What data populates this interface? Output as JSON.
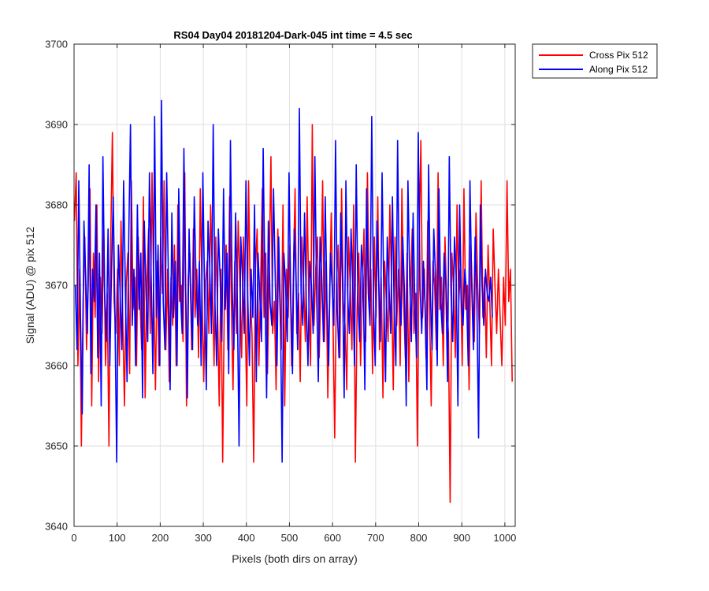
{
  "chart_data": {
    "type": "line",
    "title": "RS04 Day04 20181204-Dark-045 int time = 4.5 sec",
    "xlabel": "Pixels (both dirs on array)",
    "ylabel": "Signal (ADU) @ pix 512",
    "xlim": [
      0,
      1024
    ],
    "ylim": [
      3640,
      3700
    ],
    "xticks": [
      0,
      100,
      200,
      300,
      400,
      500,
      600,
      700,
      800,
      900,
      1000
    ],
    "yticks": [
      3640,
      3650,
      3660,
      3670,
      3680,
      3690,
      3700
    ],
    "grid": true,
    "legend_location": "outside-top-right",
    "series": [
      {
        "name": "Cross Pix 512",
        "color": "#ff0000",
        "x_start": 1,
        "x_step": 4,
        "values": [
          3678,
          3684,
          3660,
          3672,
          3650,
          3668,
          3676,
          3662,
          3670,
          3682,
          3655,
          3674,
          3666,
          3680,
          3658,
          3671,
          3664,
          3677,
          3660,
          3669,
          3650,
          3675,
          3689,
          3668,
          3664,
          3672,
          3660,
          3678,
          3666,
          3655,
          3670,
          3674,
          3659,
          3683,
          3667,
          3671,
          3660,
          3676,
          3668,
          3662,
          3681,
          3656,
          3670,
          3677,
          3664,
          3684,
          3669,
          3657,
          3673,
          3660,
          3676,
          3669,
          3683,
          3662,
          3672,
          3658,
          3671,
          3665,
          3675,
          3660,
          3680,
          3668,
          3670,
          3663,
          3684,
          3655,
          3671,
          3674,
          3662,
          3677,
          3666,
          3672,
          3661,
          3682,
          3669,
          3658,
          3670,
          3673,
          3664,
          3680,
          3671,
          3660,
          3676,
          3667,
          3655,
          3672,
          3648,
          3669,
          3675,
          3662,
          3681,
          3668,
          3657,
          3673,
          3664,
          3678,
          3670,
          3661,
          3676,
          3667,
          3655,
          3683,
          3669,
          3664,
          3648,
          3672,
          3677,
          3660,
          3670,
          3682,
          3666,
          3674,
          3659,
          3672,
          3686,
          3664,
          3668,
          3657,
          3677,
          3669,
          3662,
          3680,
          3655,
          3672,
          3666,
          3675,
          3660,
          3671,
          3682,
          3664,
          3669,
          3658,
          3676,
          3670,
          3663,
          3681,
          3668,
          3660,
          3690,
          3665,
          3672,
          3676,
          3661,
          3670,
          3683,
          3663,
          3673,
          3656,
          3668,
          3679,
          3666,
          3651,
          3670,
          3675,
          3661,
          3682,
          3668,
          3665,
          3657,
          3676,
          3670,
          3662,
          3680,
          3648,
          3667,
          3674,
          3660,
          3669,
          3677,
          3663,
          3684,
          3668,
          3672,
          3659,
          3676,
          3666,
          3681,
          3662,
          3671,
          3656,
          3673,
          3668,
          3663,
          3680,
          3670,
          3657,
          3676,
          3665,
          3672,
          3660,
          3682,
          3668,
          3661,
          3674,
          3658,
          3670,
          3677,
          3664,
          3669,
          3650,
          3675,
          3688,
          3666,
          3672,
          3661,
          3678,
          3668,
          3655,
          3673,
          3670,
          3662,
          3684,
          3667,
          3671,
          3660,
          3676,
          3668,
          3664,
          3643,
          3674,
          3670,
          3661,
          3680,
          3668,
          3672,
          3660,
          3682,
          3667,
          3670,
          3657,
          3675,
          3668,
          3663,
          3679,
          3670,
          3664,
          3683,
          3666,
          3671,
          3661,
          3675,
          3668,
          3660,
          3677,
          3670,
          3664,
          3672,
          3666,
          3660,
          3671,
          3665,
          3683,
          3668,
          3672,
          3658
        ]
      },
      {
        "name": "Along Pix 512",
        "color": "#0000ff",
        "x_start": 3,
        "x_step": 4,
        "values": [
          3670,
          3662,
          3683,
          3666,
          3654,
          3678,
          3671,
          3664,
          3685,
          3659,
          3672,
          3668,
          3680,
          3661,
          3674,
          3655,
          3686,
          3669,
          3663,
          3677,
          3660,
          3672,
          3681,
          3666,
          3648,
          3675,
          3669,
          3662,
          3683,
          3670,
          3658,
          3676,
          3690,
          3665,
          3672,
          3660,
          3680,
          3667,
          3674,
          3656,
          3678,
          3669,
          3663,
          3684,
          3671,
          3659,
          3691,
          3666,
          3675,
          3660,
          3693,
          3668,
          3662,
          3684,
          3671,
          3657,
          3679,
          3666,
          3673,
          3660,
          3682,
          3669,
          3664,
          3687,
          3670,
          3656,
          3677,
          3668,
          3662,
          3681,
          3671,
          3665,
          3673,
          3660,
          3684,
          3669,
          3657,
          3678,
          3672,
          3664,
          3690,
          3668,
          3660,
          3677,
          3671,
          3663,
          3682,
          3667,
          3674,
          3659,
          3688,
          3670,
          3662,
          3679,
          3668,
          3650,
          3676,
          3671,
          3664,
          3683,
          3669,
          3660,
          3672,
          3666,
          3680,
          3658,
          3674,
          3669,
          3663,
          3687,
          3670,
          3656,
          3678,
          3668,
          3665,
          3682,
          3671,
          3660,
          3676,
          3667,
          3648,
          3674,
          3670,
          3663,
          3684,
          3668,
          3659,
          3677,
          3671,
          3662,
          3692,
          3669,
          3665,
          3679,
          3668,
          3660,
          3673,
          3670,
          3664,
          3686,
          3669,
          3658,
          3676,
          3671,
          3663,
          3681,
          3668,
          3660,
          3674,
          3670,
          3665,
          3688,
          3667,
          3661,
          3679,
          3671,
          3656,
          3683,
          3669,
          3664,
          3677,
          3670,
          3660,
          3685,
          3668,
          3663,
          3675,
          3671,
          3657,
          3682,
          3669,
          3665,
          3691,
          3668,
          3660,
          3678,
          3671,
          3663,
          3684,
          3669,
          3658,
          3676,
          3670,
          3664,
          3681,
          3667,
          3660,
          3688,
          3670,
          3665,
          3676,
          3669,
          3655,
          3683,
          3671,
          3663,
          3679,
          3668,
          3661,
          3689,
          3670,
          3664,
          3673,
          3667,
          3657,
          3685,
          3669,
          3662,
          3677,
          3671,
          3660,
          3682,
          3668,
          3664,
          3674,
          3670,
          3658,
          3686,
          3669,
          3663,
          3676,
          3671,
          3655,
          3680,
          3668,
          3665,
          3672,
          3669,
          3660,
          3683,
          3670,
          3662,
          3676,
          3668,
          3651,
          3680,
          3670,
          3665,
          3672,
          3669,
          3668,
          3671,
          3666
        ]
      }
    ]
  }
}
